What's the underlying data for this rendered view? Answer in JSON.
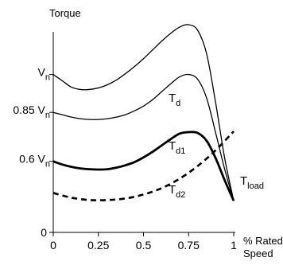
{
  "chart_data": {
    "type": "line",
    "title": "",
    "ylabel": "Torque",
    "xlabel": "% Rated Speed",
    "xlabel_lines": [
      "% Rated",
      "Speed"
    ],
    "x_ticks": [
      "0",
      "0.25",
      "0.5",
      "0.75",
      "1"
    ],
    "y_ticks": [
      "0"
    ],
    "xlim": [
      0,
      1
    ],
    "ylim": [
      0,
      1.27
    ],
    "grid": false,
    "legend": "none",
    "y_level_labels": [
      {
        "base": "V",
        "sub": "n",
        "prefix": "",
        "value": 1.0
      },
      {
        "base": "V",
        "sub": "n",
        "prefix": "0.85 ",
        "value": 0.76
      },
      {
        "base": "V",
        "sub": "n",
        "prefix": "0.6 ",
        "value": 0.45
      }
    ],
    "series": [
      {
        "base": "T",
        "sub": "d",
        "style": "thin",
        "color": "#000000",
        "x": [
          0,
          0.05,
          0.1,
          0.15,
          0.2,
          0.25,
          0.3,
          0.35,
          0.4,
          0.45,
          0.5,
          0.55,
          0.6,
          0.65,
          0.7,
          0.75,
          0.8,
          0.85,
          0.9,
          0.95,
          1.0
        ],
        "values": [
          1.0,
          0.96,
          0.92,
          0.905,
          0.905,
          0.915,
          0.935,
          0.965,
          1.005,
          1.05,
          1.1,
          1.155,
          1.21,
          1.26,
          1.3,
          1.315,
          1.28,
          1.13,
          0.82,
          0.47,
          0.2
        ]
      },
      {
        "base": "T",
        "sub": "d1",
        "style": "thin",
        "color": "#000000",
        "x": [
          0,
          0.05,
          0.1,
          0.15,
          0.2,
          0.25,
          0.3,
          0.35,
          0.4,
          0.45,
          0.5,
          0.55,
          0.6,
          0.65,
          0.7,
          0.75,
          0.8,
          0.85,
          0.9,
          0.95,
          1.0
        ],
        "values": [
          0.76,
          0.745,
          0.73,
          0.72,
          0.715,
          0.715,
          0.72,
          0.73,
          0.745,
          0.77,
          0.8,
          0.84,
          0.89,
          0.94,
          0.985,
          1.0,
          0.97,
          0.85,
          0.63,
          0.4,
          0.2
        ]
      },
      {
        "base": "T",
        "sub": "d2",
        "style": "thick",
        "color": "#000000",
        "x": [
          0,
          0.05,
          0.1,
          0.15,
          0.2,
          0.25,
          0.3,
          0.35,
          0.4,
          0.45,
          0.5,
          0.55,
          0.6,
          0.65,
          0.7,
          0.75,
          0.8,
          0.85,
          0.9,
          0.95,
          1.0
        ],
        "values": [
          0.45,
          0.43,
          0.415,
          0.405,
          0.4,
          0.398,
          0.4,
          0.41,
          0.425,
          0.445,
          0.475,
          0.51,
          0.55,
          0.59,
          0.625,
          0.635,
          0.63,
          0.58,
          0.47,
          0.33,
          0.2
        ]
      },
      {
        "base": "T",
        "sub": "load",
        "style": "dashed",
        "color": "#000000",
        "x": [
          0,
          0.1,
          0.2,
          0.3,
          0.4,
          0.5,
          0.6,
          0.7,
          0.8,
          0.9,
          1.0
        ],
        "values": [
          0.25,
          0.22,
          0.205,
          0.205,
          0.215,
          0.24,
          0.28,
          0.34,
          0.42,
          0.52,
          0.64
        ]
      }
    ]
  }
}
